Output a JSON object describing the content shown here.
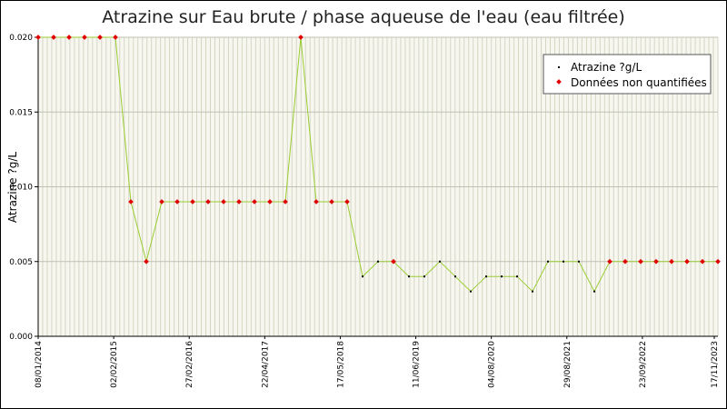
{
  "chart_data": {
    "type": "line",
    "title": "Atrazine sur Eau brute / phase aqueuse de l'eau (eau filtrée)",
    "ylabel": "Atrazine ?g/L",
    "xlabel": "",
    "ylim": [
      0,
      0.02
    ],
    "y_ticks": [
      "0.000",
      "0.005",
      "0.010",
      "0.015",
      "0.020"
    ],
    "y_tick_values": [
      0,
      0.005,
      0.01,
      0.015,
      0.02
    ],
    "x_tick_labels": [
      "08/01/2014",
      "02/02/2015",
      "27/02/2016",
      "22/04/2017",
      "17/05/2018",
      "11/06/2019",
      "04/08/2020",
      "29/08/2021",
      "23/09/2022",
      "17/11/2023"
    ],
    "x_tick_index": [
      0,
      7,
      14,
      21,
      28,
      35,
      42,
      49,
      56,
      63
    ],
    "n_samples": 64,
    "grid": true,
    "legend_position": "top-right",
    "series": [
      {
        "name": "Atrazine ?g/L",
        "color": "#000000",
        "line_color": "#9acd32",
        "points": [
          [
            0,
            0.02
          ],
          [
            1,
            0.02
          ],
          [
            2,
            0.02
          ],
          [
            3,
            0.02
          ],
          [
            4,
            0.02
          ],
          [
            5,
            0.02
          ],
          [
            6,
            0.009
          ],
          [
            7,
            0.005
          ],
          [
            8,
            0.009
          ],
          [
            9,
            0.009
          ],
          [
            10,
            0.009
          ],
          [
            11,
            0.009
          ],
          [
            12,
            0.009
          ],
          [
            13,
            0.009
          ],
          [
            14,
            0.009
          ],
          [
            15,
            0.009
          ],
          [
            16,
            0.009
          ],
          [
            17,
            0.02
          ],
          [
            18,
            0.009
          ],
          [
            19,
            0.009
          ],
          [
            20,
            0.009
          ],
          [
            21,
            0.004
          ],
          [
            22,
            0.005
          ],
          [
            23,
            0.005
          ],
          [
            24,
            0.004
          ],
          [
            25,
            0.004
          ],
          [
            26,
            0.005
          ],
          [
            27,
            0.004
          ],
          [
            28,
            0.003
          ],
          [
            29,
            0.004
          ],
          [
            30,
            0.004
          ],
          [
            31,
            0.004
          ],
          [
            32,
            0.003
          ],
          [
            33,
            0.005
          ],
          [
            34,
            0.005
          ],
          [
            35,
            0.005
          ],
          [
            36,
            0.003
          ],
          [
            37,
            0.005
          ],
          [
            38,
            0.005
          ],
          [
            39,
            0.005
          ],
          [
            40,
            0.005
          ],
          [
            41,
            0.005
          ],
          [
            42,
            0.005
          ],
          [
            43,
            0.005
          ],
          [
            44,
            0.005
          ]
        ]
      },
      {
        "name": "Données non quantifiées",
        "color": "#e00000",
        "indices": [
          0,
          1,
          2,
          3,
          4,
          5,
          6,
          7,
          8,
          9,
          10,
          11,
          12,
          13,
          14,
          15,
          16,
          17,
          18,
          19,
          20,
          23,
          37,
          38,
          39,
          40,
          41,
          42,
          43,
          44
        ]
      }
    ],
    "x_positions_by_index": []
  }
}
